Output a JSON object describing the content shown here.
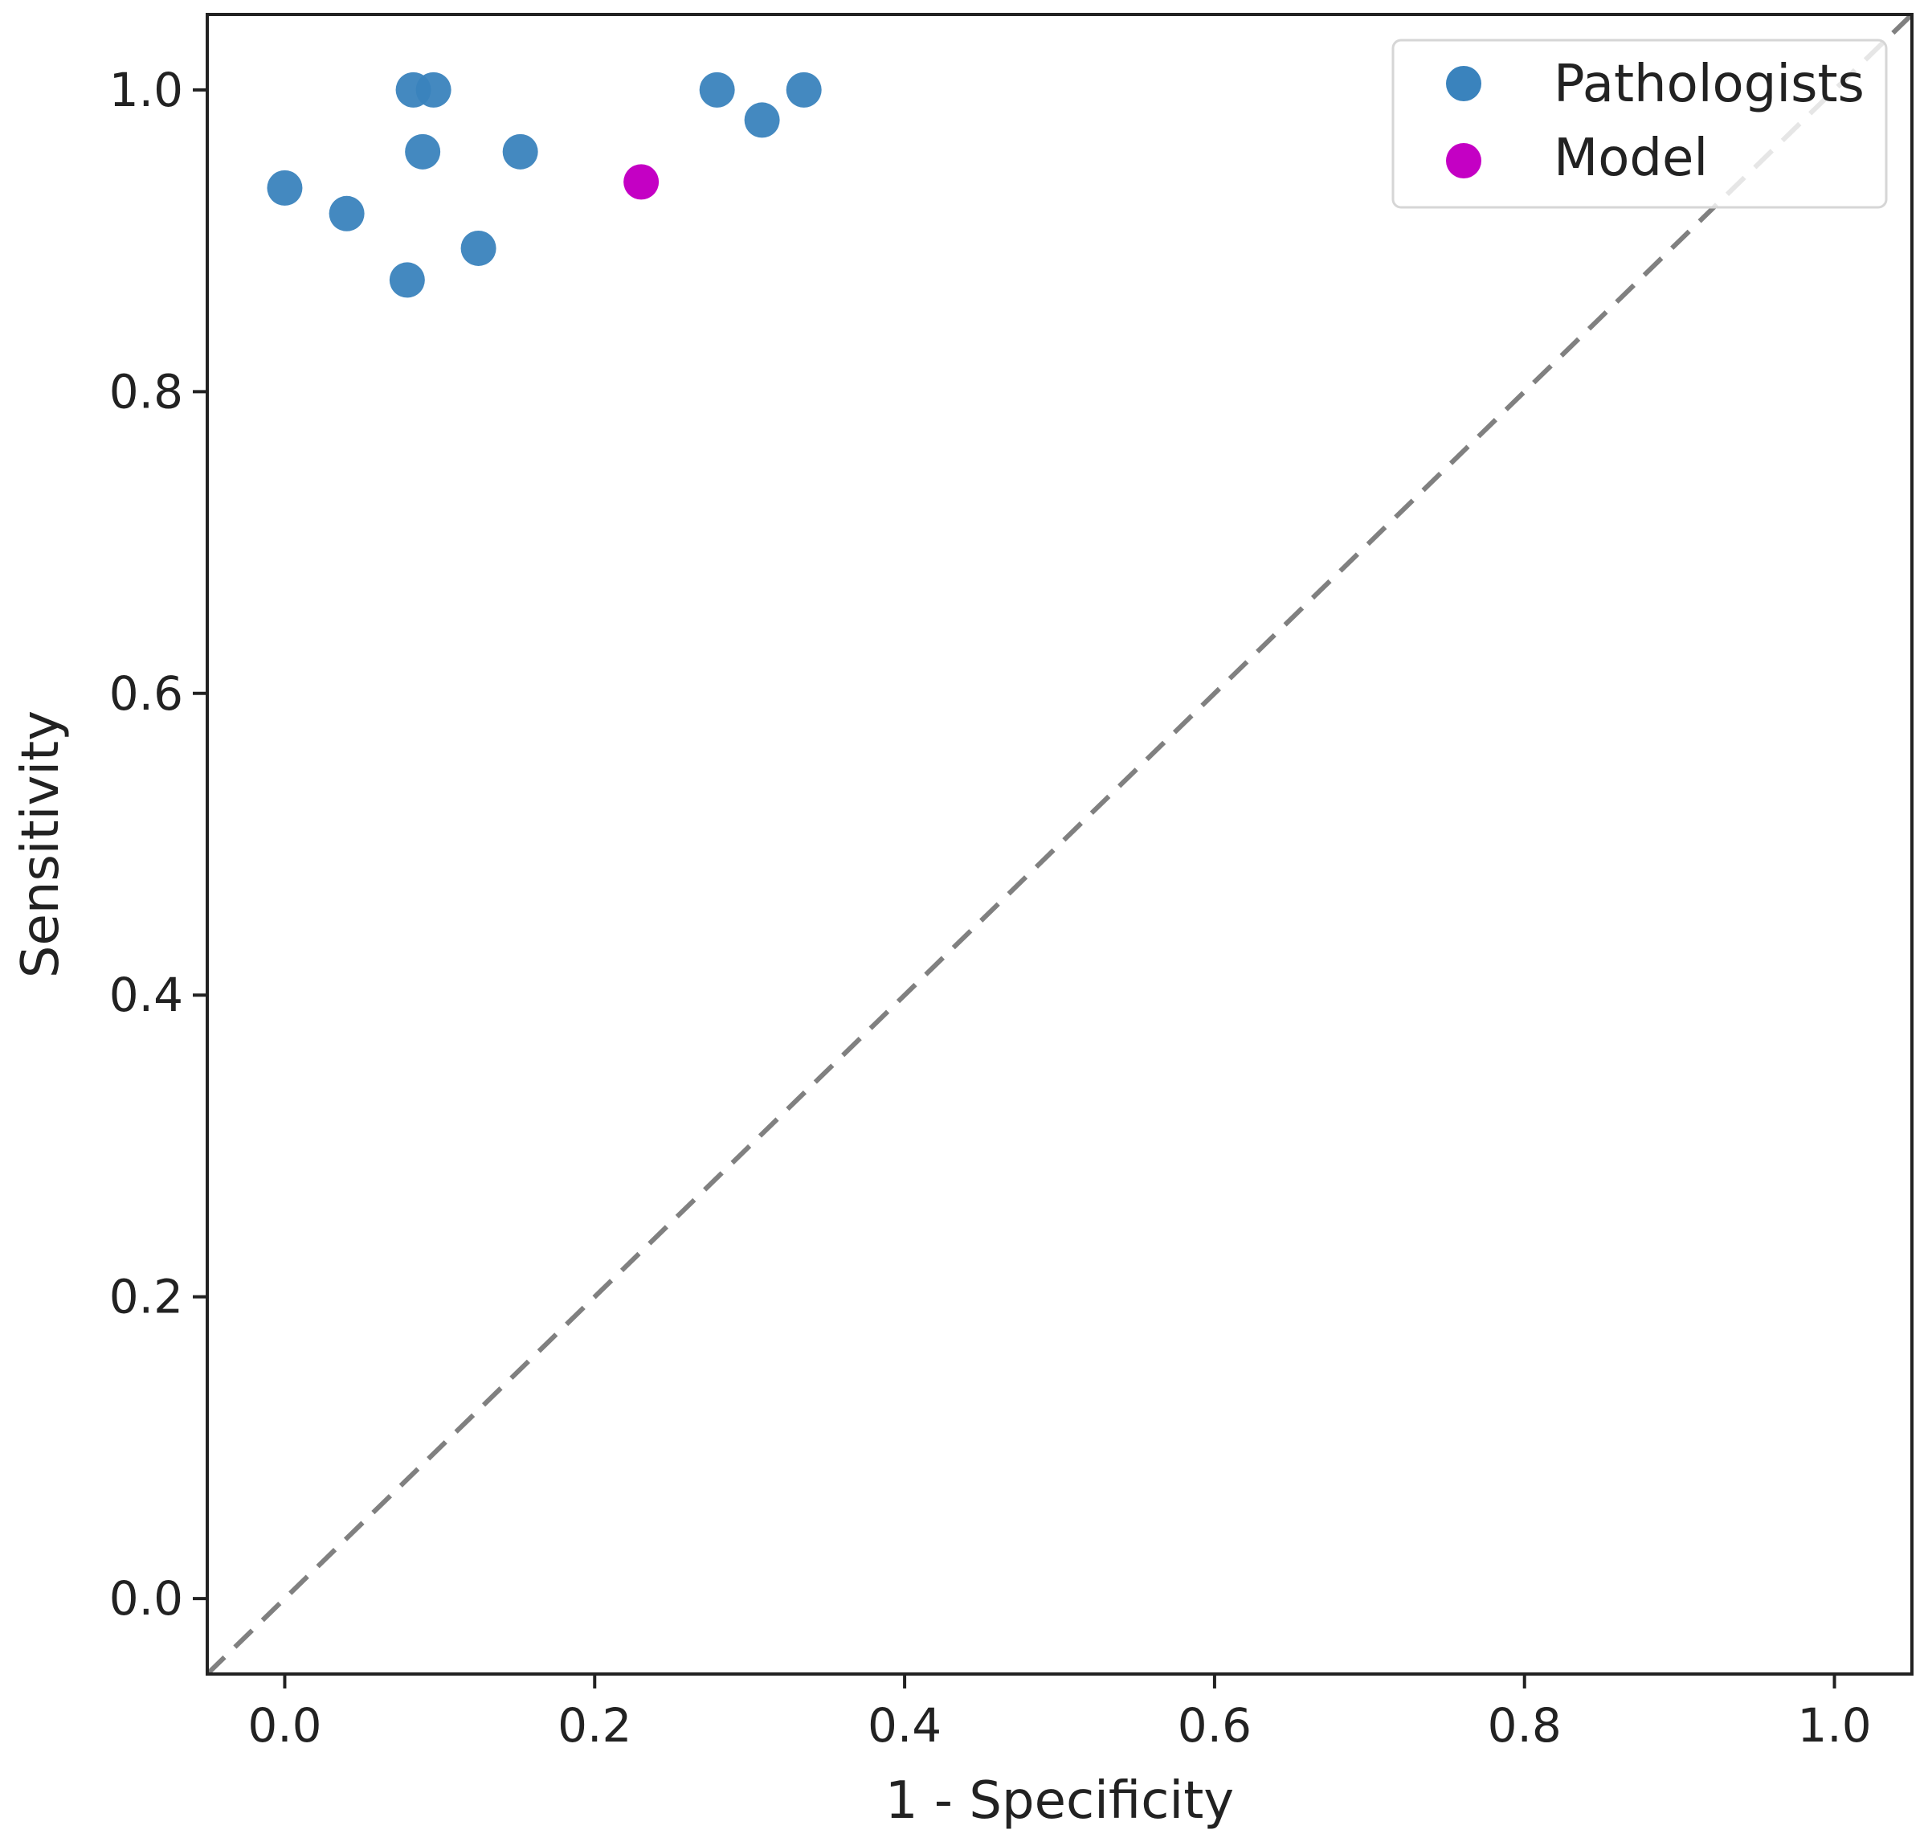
{
  "chart_data": {
    "type": "scatter",
    "title": "",
    "xlabel": "1 - Specificity",
    "ylabel": "Sensitivity",
    "xlim": [
      -0.05,
      1.05
    ],
    "ylim": [
      -0.05,
      1.05
    ],
    "xticks": [
      0.0,
      0.2,
      0.4,
      0.6,
      0.8,
      1.0
    ],
    "xtick_labels": [
      "0.0",
      "0.2",
      "0.4",
      "0.6",
      "0.8",
      "1.0"
    ],
    "yticks": [
      0.0,
      0.2,
      0.4,
      0.6,
      0.8,
      1.0
    ],
    "ytick_labels": [
      "0.0",
      "0.2",
      "0.4",
      "0.6",
      "0.8",
      "1.0"
    ],
    "grid": false,
    "legend_position": "top-right",
    "reference_line": {
      "style": "dashed",
      "color": "#808080",
      "x": [
        -0.05,
        1.05
      ],
      "y": [
        -0.05,
        1.05
      ]
    },
    "series": [
      {
        "name": "Pathologists",
        "color": "#3a83bd",
        "points": [
          {
            "x": 0.0,
            "y": 0.935
          },
          {
            "x": 0.04,
            "y": 0.918
          },
          {
            "x": 0.079,
            "y": 0.874
          },
          {
            "x": 0.083,
            "y": 1.0
          },
          {
            "x": 0.089,
            "y": 0.959
          },
          {
            "x": 0.096,
            "y": 1.0
          },
          {
            "x": 0.125,
            "y": 0.895
          },
          {
            "x": 0.152,
            "y": 0.959
          },
          {
            "x": 0.279,
            "y": 1.0
          },
          {
            "x": 0.308,
            "y": 0.98
          },
          {
            "x": 0.335,
            "y": 1.0
          }
        ]
      },
      {
        "name": "Model",
        "color": "#c400c4",
        "points": [
          {
            "x": 0.23,
            "y": 0.939
          }
        ]
      }
    ]
  }
}
